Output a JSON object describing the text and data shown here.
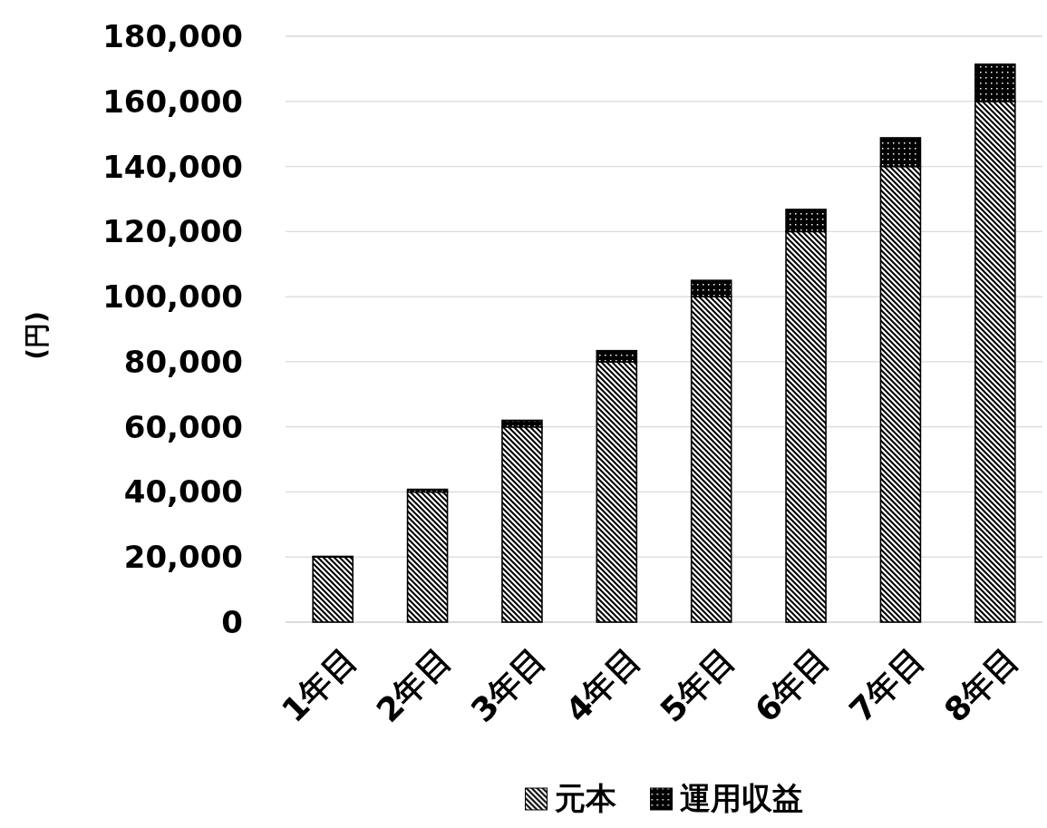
{
  "chart_data": {
    "type": "bar",
    "stacked": true,
    "ylabel": "(円)",
    "categories": [
      "1年目",
      "2年目",
      "3年目",
      "4年目",
      "5年目",
      "6年目",
      "7年目",
      "8年目"
    ],
    "series": [
      {
        "name": "元本",
        "color": "#000000",
        "values": [
          20000,
          40000,
          60000,
          80000,
          100000,
          120000,
          140000,
          160000
        ]
      },
      {
        "name": "運用収益",
        "color": "#000000",
        "values": [
          200,
          800,
          2000,
          3400,
          5000,
          6800,
          8800,
          11400
        ]
      }
    ],
    "ylim": [
      0,
      180000
    ],
    "yticks": [
      0,
      {
        "value": 20000,
        "label": "20,000"
      },
      {
        "value": 40000,
        "label": "40,000"
      },
      {
        "value": 60000,
        "label": "60,000"
      },
      {
        "value": 80000,
        "label": "80,000"
      },
      {
        "value": 100000,
        "label": "100,000"
      },
      {
        "value": 120000,
        "label": "120,000"
      },
      {
        "value": 140000,
        "label": "140,000"
      },
      {
        "value": 160000,
        "label": "160,000"
      },
      {
        "value": 180000,
        "label": "180,000"
      }
    ],
    "grid": "y",
    "legend": "bottom"
  }
}
